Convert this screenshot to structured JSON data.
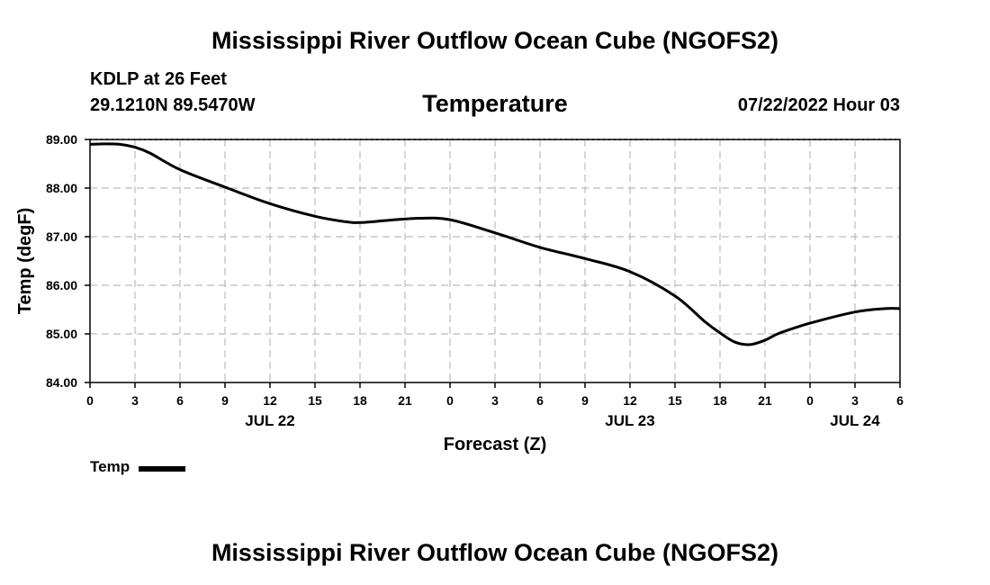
{
  "header": {
    "title": "Mississippi River Outflow Ocean Cube (NGOFS2)",
    "station": "KDLP at 26 Feet",
    "coords": "29.1210N  89.5470W",
    "chart_title": "Temperature",
    "datetime": "07/22/2022 Hour 03"
  },
  "footer": {
    "title": "Mississippi River Outflow Ocean Cube (NGOFS2)"
  },
  "legend": {
    "label": "Temp",
    "color": "#000000"
  },
  "chart_data": {
    "type": "line",
    "title": "Temperature",
    "xlabel": "Forecast (Z)",
    "ylabel": "Temp (degF)",
    "x_unit": "hours since JUL 22 00Z",
    "xlim": [
      0,
      54
    ],
    "ylim": [
      84,
      89
    ],
    "grid": true,
    "legend_position": "bottom-left",
    "y_ticks": [
      84,
      85,
      86,
      87,
      88,
      89
    ],
    "y_tick_labels": [
      "84.00",
      "85.00",
      "86.00",
      "87.00",
      "88.00",
      "89.00"
    ],
    "x_ticks": [
      0,
      3,
      6,
      9,
      12,
      15,
      18,
      21,
      24,
      27,
      30,
      33,
      36,
      39,
      42,
      45,
      48,
      51,
      54
    ],
    "x_tick_labels": [
      "0",
      "3",
      "6",
      "9",
      "12",
      "15",
      "18",
      "21",
      "0",
      "3",
      "6",
      "9",
      "12",
      "15",
      "18",
      "21",
      "0",
      "3",
      "6"
    ],
    "date_labels": [
      {
        "x": 12,
        "label": "JUL 22"
      },
      {
        "x": 36,
        "label": "JUL 23"
      },
      {
        "x": 51,
        "label": "JUL 24"
      }
    ],
    "series": [
      {
        "name": "Temp",
        "x": [
          0,
          1,
          2,
          3,
          4,
          6,
          9,
          12,
          15,
          17,
          18,
          20,
          22,
          24,
          27,
          30,
          33,
          36,
          39,
          41,
          42,
          43,
          44,
          45,
          46,
          48,
          51,
          53,
          54
        ],
        "values": [
          88.9,
          88.91,
          88.9,
          88.84,
          88.72,
          88.38,
          88.02,
          87.68,
          87.42,
          87.31,
          87.29,
          87.34,
          87.38,
          87.35,
          87.08,
          86.78,
          86.55,
          86.28,
          85.78,
          85.25,
          85.02,
          84.83,
          84.78,
          84.87,
          85.02,
          85.22,
          85.45,
          85.52,
          85.52
        ]
      }
    ]
  }
}
